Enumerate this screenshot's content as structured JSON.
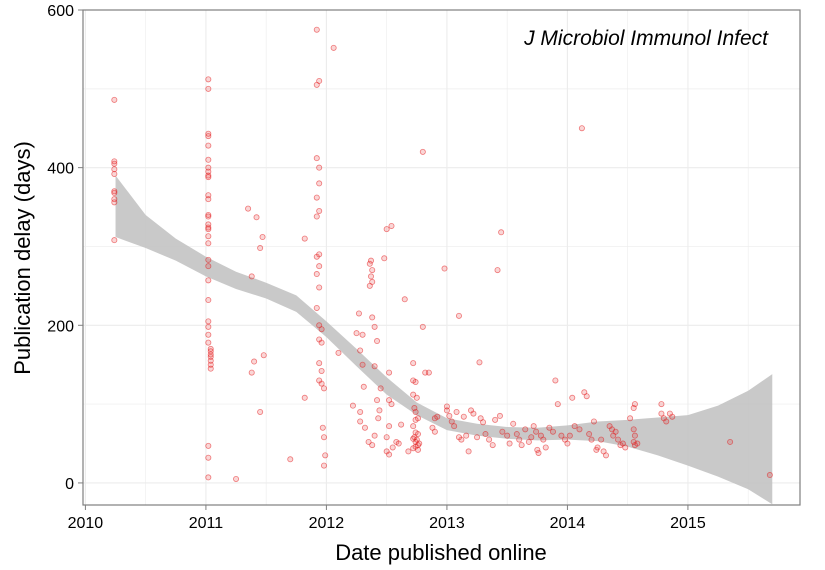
{
  "chart_data": {
    "type": "scatter",
    "title": "",
    "annotation": "J Microbiol Immunol Infect",
    "xlabel": "Date published online",
    "ylabel": "Publication delay (days)",
    "xlim": [
      2009.98,
      2015.93
    ],
    "ylim": [
      -28,
      600
    ],
    "x_ticks": [
      2010,
      2011,
      2012,
      2013,
      2014,
      2015
    ],
    "x_tick_labels": [
      "2010",
      "2011",
      "2012",
      "2013",
      "2014",
      "2015"
    ],
    "y_ticks": [
      0,
      200,
      400,
      600
    ],
    "y_tick_labels": [
      "0",
      "200",
      "400",
      "600"
    ],
    "grid": true,
    "point_color": "#e41a1c",
    "band_color": "#bfbfbf",
    "panel_border_color": "#7f7f7f",
    "grid_color": "#ececec",
    "smooth_band": [
      {
        "x": 2010.25,
        "lo": 312,
        "hi": 390
      },
      {
        "x": 2010.5,
        "lo": 298,
        "hi": 340
      },
      {
        "x": 2010.75,
        "lo": 282,
        "hi": 310
      },
      {
        "x": 2011.0,
        "lo": 262,
        "hi": 287
      },
      {
        "x": 2011.25,
        "lo": 246,
        "hi": 268
      },
      {
        "x": 2011.5,
        "lo": 234,
        "hi": 254
      },
      {
        "x": 2011.75,
        "lo": 217,
        "hi": 238
      },
      {
        "x": 2012.0,
        "lo": 185,
        "hi": 205
      },
      {
        "x": 2012.25,
        "lo": 148,
        "hi": 170
      },
      {
        "x": 2012.5,
        "lo": 112,
        "hi": 134
      },
      {
        "x": 2012.75,
        "lo": 86,
        "hi": 102
      },
      {
        "x": 2013.0,
        "lo": 67,
        "hi": 82
      },
      {
        "x": 2013.25,
        "lo": 60,
        "hi": 75
      },
      {
        "x": 2013.5,
        "lo": 56,
        "hi": 71
      },
      {
        "x": 2013.75,
        "lo": 54,
        "hi": 70
      },
      {
        "x": 2014.0,
        "lo": 55,
        "hi": 73
      },
      {
        "x": 2014.25,
        "lo": 53,
        "hi": 78
      },
      {
        "x": 2014.5,
        "lo": 46,
        "hi": 80
      },
      {
        "x": 2014.75,
        "lo": 35,
        "hi": 83
      },
      {
        "x": 2015.0,
        "lo": 22,
        "hi": 86
      },
      {
        "x": 2015.25,
        "lo": 8,
        "hi": 98
      },
      {
        "x": 2015.5,
        "lo": -8,
        "hi": 117
      },
      {
        "x": 2015.7,
        "lo": -27,
        "hi": 138
      }
    ],
    "points": [
      [
        2010.24,
        486
      ],
      [
        2010.24,
        408
      ],
      [
        2010.24,
        405
      ],
      [
        2010.24,
        398
      ],
      [
        2010.24,
        392
      ],
      [
        2010.24,
        370
      ],
      [
        2010.24,
        368
      ],
      [
        2010.24,
        360
      ],
      [
        2010.24,
        356
      ],
      [
        2010.24,
        308
      ],
      [
        2011.02,
        512
      ],
      [
        2011.02,
        500
      ],
      [
        2011.02,
        443
      ],
      [
        2011.02,
        440
      ],
      [
        2011.02,
        428
      ],
      [
        2011.02,
        410
      ],
      [
        2011.02,
        400
      ],
      [
        2011.02,
        395
      ],
      [
        2011.02,
        390
      ],
      [
        2011.02,
        388
      ],
      [
        2011.02,
        365
      ],
      [
        2011.02,
        360
      ],
      [
        2011.02,
        340
      ],
      [
        2011.02,
        338
      ],
      [
        2011.02,
        328
      ],
      [
        2011.02,
        324
      ],
      [
        2011.02,
        322
      ],
      [
        2011.02,
        313
      ],
      [
        2011.02,
        304
      ],
      [
        2011.02,
        283
      ],
      [
        2011.02,
        275
      ],
      [
        2011.02,
        257
      ],
      [
        2011.02,
        232
      ],
      [
        2011.02,
        205
      ],
      [
        2011.02,
        198
      ],
      [
        2011.02,
        188
      ],
      [
        2011.02,
        178
      ],
      [
        2011.04,
        170
      ],
      [
        2011.04,
        167
      ],
      [
        2011.04,
        163
      ],
      [
        2011.04,
        160
      ],
      [
        2011.04,
        155
      ],
      [
        2011.04,
        150
      ],
      [
        2011.04,
        145
      ],
      [
        2011.02,
        47
      ],
      [
        2011.02,
        32
      ],
      [
        2011.02,
        7
      ],
      [
        2011.25,
        5
      ],
      [
        2011.35,
        348
      ],
      [
        2011.42,
        337
      ],
      [
        2011.47,
        312
      ],
      [
        2011.45,
        298
      ],
      [
        2011.38,
        262
      ],
      [
        2011.4,
        154
      ],
      [
        2011.38,
        140
      ],
      [
        2011.48,
        162
      ],
      [
        2011.45,
        90
      ],
      [
        2011.7,
        30
      ],
      [
        2011.82,
        108
      ],
      [
        2011.82,
        310
      ],
      [
        2011.92,
        575
      ],
      [
        2011.94,
        510
      ],
      [
        2011.92,
        505
      ],
      [
        2011.92,
        412
      ],
      [
        2011.94,
        400
      ],
      [
        2011.94,
        380
      ],
      [
        2011.92,
        362
      ],
      [
        2011.94,
        345
      ],
      [
        2011.92,
        338
      ],
      [
        2011.94,
        290
      ],
      [
        2011.92,
        287
      ],
      [
        2011.94,
        275
      ],
      [
        2011.92,
        265
      ],
      [
        2011.94,
        248
      ],
      [
        2011.92,
        222
      ],
      [
        2011.94,
        200
      ],
      [
        2011.96,
        195
      ],
      [
        2011.94,
        182
      ],
      [
        2011.96,
        178
      ],
      [
        2011.94,
        152
      ],
      [
        2011.96,
        142
      ],
      [
        2011.94,
        130
      ],
      [
        2011.96,
        126
      ],
      [
        2011.98,
        120
      ],
      [
        2011.97,
        70
      ],
      [
        2011.98,
        58
      ],
      [
        2011.99,
        35
      ],
      [
        2011.98,
        22
      ],
      [
        2012.06,
        552
      ],
      [
        2012.1,
        165
      ],
      [
        2012.22,
        98
      ],
      [
        2012.25,
        190
      ],
      [
        2012.27,
        215
      ],
      [
        2012.28,
        168
      ],
      [
        2012.3,
        188
      ],
      [
        2012.3,
        150
      ],
      [
        2012.31,
        122
      ],
      [
        2012.28,
        90
      ],
      [
        2012.28,
        78
      ],
      [
        2012.32,
        70
      ],
      [
        2012.35,
        52
      ],
      [
        2012.37,
        282
      ],
      [
        2012.36,
        278
      ],
      [
        2012.38,
        270
      ],
      [
        2012.37,
        262
      ],
      [
        2012.38,
        255
      ],
      [
        2012.36,
        250
      ],
      [
        2012.38,
        210
      ],
      [
        2012.4,
        198
      ],
      [
        2012.42,
        180
      ],
      [
        2012.4,
        148
      ],
      [
        2012.45,
        120
      ],
      [
        2012.42,
        105
      ],
      [
        2012.44,
        92
      ],
      [
        2012.43,
        82
      ],
      [
        2012.4,
        60
      ],
      [
        2012.38,
        48
      ],
      [
        2012.48,
        285
      ],
      [
        2012.5,
        322
      ],
      [
        2012.54,
        326
      ],
      [
        2012.52,
        140
      ],
      [
        2012.52,
        105
      ],
      [
        2012.54,
        100
      ],
      [
        2012.52,
        72
      ],
      [
        2012.5,
        58
      ],
      [
        2012.55,
        45
      ],
      [
        2012.58,
        52
      ],
      [
        2012.6,
        50
      ],
      [
        2012.5,
        40
      ],
      [
        2012.52,
        36
      ],
      [
        2012.62,
        74
      ],
      [
        2012.65,
        233
      ],
      [
        2012.68,
        40
      ],
      [
        2012.72,
        56
      ],
      [
        2012.72,
        152
      ],
      [
        2012.72,
        130
      ],
      [
        2012.74,
        128
      ],
      [
        2012.72,
        112
      ],
      [
        2012.75,
        108
      ],
      [
        2012.73,
        95
      ],
      [
        2012.74,
        90
      ],
      [
        2012.76,
        82
      ],
      [
        2012.74,
        80
      ],
      [
        2012.72,
        72
      ],
      [
        2012.74,
        64
      ],
      [
        2012.76,
        62
      ],
      [
        2012.73,
        58
      ],
      [
        2012.75,
        55
      ],
      [
        2012.74,
        52
      ],
      [
        2012.77,
        50
      ],
      [
        2012.76,
        48
      ],
      [
        2012.74,
        46
      ],
      [
        2012.72,
        44
      ],
      [
        2012.76,
        42
      ],
      [
        2012.8,
        420
      ],
      [
        2012.8,
        198
      ],
      [
        2012.82,
        140
      ],
      [
        2012.85,
        140
      ],
      [
        2012.9,
        82
      ],
      [
        2012.92,
        84
      ],
      [
        2012.88,
        70
      ],
      [
        2012.9,
        65
      ],
      [
        2012.98,
        272
      ],
      [
        2013.0,
        97
      ],
      [
        2013.0,
        92
      ],
      [
        2013.02,
        85
      ],
      [
        2013.04,
        78
      ],
      [
        2013.06,
        72
      ],
      [
        2013.08,
        90
      ],
      [
        2013.1,
        212
      ],
      [
        2013.1,
        58
      ],
      [
        2013.12,
        55
      ],
      [
        2013.14,
        84
      ],
      [
        2013.16,
        60
      ],
      [
        2013.18,
        40
      ],
      [
        2013.2,
        92
      ],
      [
        2013.22,
        88
      ],
      [
        2013.25,
        58
      ],
      [
        2013.27,
        153
      ],
      [
        2013.28,
        82
      ],
      [
        2013.3,
        77
      ],
      [
        2013.32,
        62
      ],
      [
        2013.35,
        55
      ],
      [
        2013.38,
        48
      ],
      [
        2013.4,
        80
      ],
      [
        2013.42,
        270
      ],
      [
        2013.45,
        318
      ],
      [
        2013.44,
        85
      ],
      [
        2013.46,
        65
      ],
      [
        2013.5,
        60
      ],
      [
        2013.52,
        50
      ],
      [
        2013.55,
        75
      ],
      [
        2013.58,
        62
      ],
      [
        2013.6,
        55
      ],
      [
        2013.62,
        48
      ],
      [
        2013.65,
        68
      ],
      [
        2013.68,
        52
      ],
      [
        2013.7,
        58
      ],
      [
        2013.72,
        72
      ],
      [
        2013.74,
        65
      ],
      [
        2013.75,
        42
      ],
      [
        2013.76,
        38
      ],
      [
        2013.78,
        60
      ],
      [
        2013.8,
        55
      ],
      [
        2013.82,
        45
      ],
      [
        2013.85,
        70
      ],
      [
        2013.88,
        65
      ],
      [
        2013.9,
        130
      ],
      [
        2013.92,
        100
      ],
      [
        2013.95,
        60
      ],
      [
        2013.98,
        55
      ],
      [
        2014.0,
        50
      ],
      [
        2014.02,
        60
      ],
      [
        2014.04,
        108
      ],
      [
        2014.06,
        72
      ],
      [
        2014.1,
        68
      ],
      [
        2014.12,
        450
      ],
      [
        2014.14,
        115
      ],
      [
        2014.16,
        110
      ],
      [
        2014.18,
        62
      ],
      [
        2014.2,
        55
      ],
      [
        2014.22,
        78
      ],
      [
        2014.24,
        42
      ],
      [
        2014.25,
        45
      ],
      [
        2014.28,
        55
      ],
      [
        2014.3,
        40
      ],
      [
        2014.32,
        35
      ],
      [
        2014.35,
        72
      ],
      [
        2014.37,
        68
      ],
      [
        2014.38,
        60
      ],
      [
        2014.4,
        65
      ],
      [
        2014.42,
        55
      ],
      [
        2014.44,
        48
      ],
      [
        2014.46,
        50
      ],
      [
        2014.48,
        45
      ],
      [
        2014.52,
        82
      ],
      [
        2014.55,
        95
      ],
      [
        2014.56,
        100
      ],
      [
        2014.55,
        68
      ],
      [
        2014.56,
        60
      ],
      [
        2014.55,
        52
      ],
      [
        2014.56,
        48
      ],
      [
        2014.58,
        50
      ],
      [
        2014.78,
        100
      ],
      [
        2014.78,
        88
      ],
      [
        2014.8,
        82
      ],
      [
        2014.82,
        78
      ],
      [
        2014.85,
        88
      ],
      [
        2014.87,
        84
      ],
      [
        2015.35,
        52
      ],
      [
        2015.68,
        10
      ]
    ]
  }
}
